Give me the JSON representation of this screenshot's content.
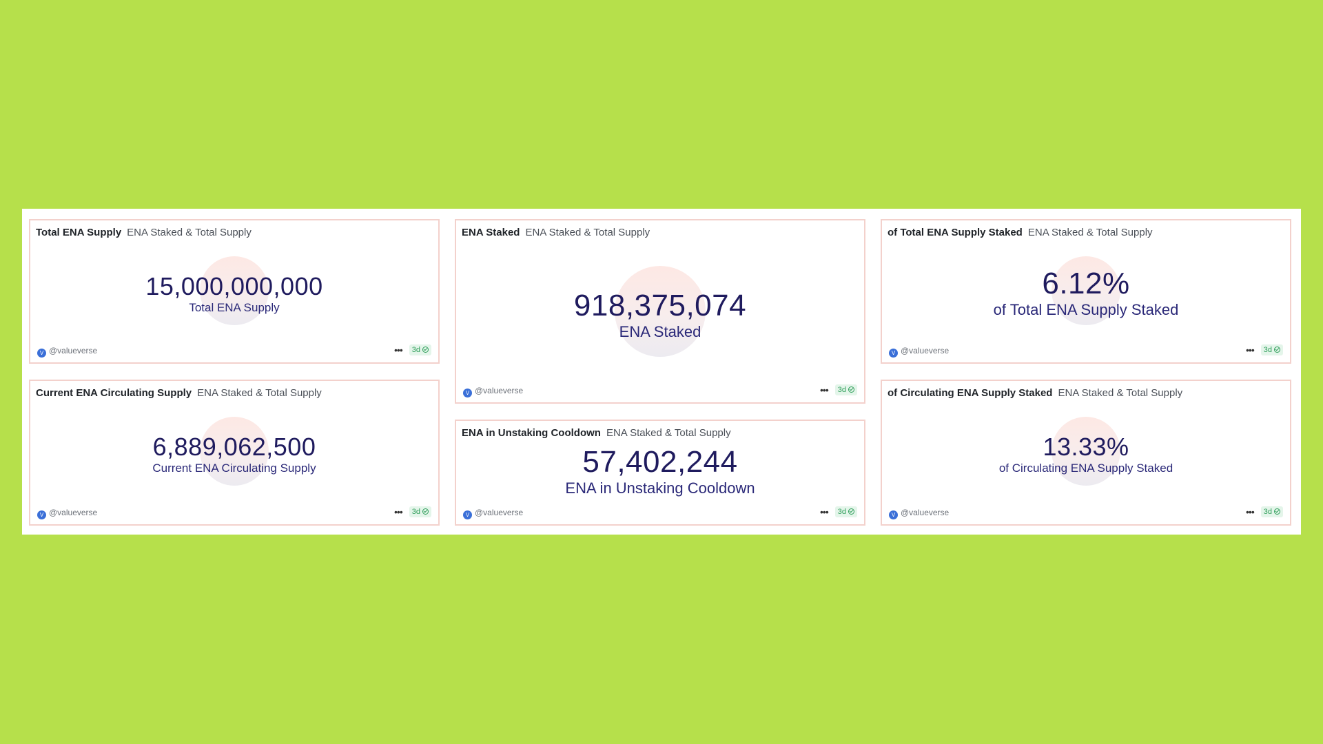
{
  "cards": [
    {
      "title": "Total ENA Supply",
      "subtitle": "ENA Staked & Total Supply",
      "value": "15,000,000,000",
      "label": "Total ENA Supply",
      "author": "@valueverse",
      "freshness": "3d"
    },
    {
      "title": "ENA Staked",
      "subtitle": "ENA Staked & Total Supply",
      "value": "918,375,074",
      "label": "ENA Staked",
      "author": "@valueverse",
      "freshness": "3d"
    },
    {
      "title": "of Total ENA Supply Staked",
      "subtitle": "ENA Staked & Total Supply",
      "value": "6.12%",
      "label": "of Total ENA Supply Staked",
      "author": "@valueverse",
      "freshness": "3d"
    },
    {
      "title": "Current ENA Circulating Supply",
      "subtitle": "ENA Staked & Total Supply",
      "value": "6,889,062,500",
      "label": "Current ENA Circulating Supply",
      "author": "@valueverse",
      "freshness": "3d"
    },
    {
      "title": "ENA in Unstaking Cooldown",
      "subtitle": "ENA Staked & Total Supply",
      "value": "57,402,244",
      "label": "ENA in Unstaking Cooldown",
      "author": "@valueverse",
      "freshness": "3d"
    },
    {
      "title": "of Circulating ENA Supply Staked",
      "subtitle": "ENA Staked & Total Supply",
      "value": "13.33%",
      "label": "of Circulating ENA Supply Staked",
      "author": "@valueverse",
      "freshness": "3d"
    }
  ],
  "more_icon": "more-horizontal-icon",
  "fresh_icon": "check-circle-icon",
  "avatar_icon": "valueverse-avatar-icon",
  "colors": {
    "background": "#b6e04b",
    "value": "#1f1b5e",
    "card_border": "#f3d1cc",
    "badge": "#2f9e5a"
  }
}
